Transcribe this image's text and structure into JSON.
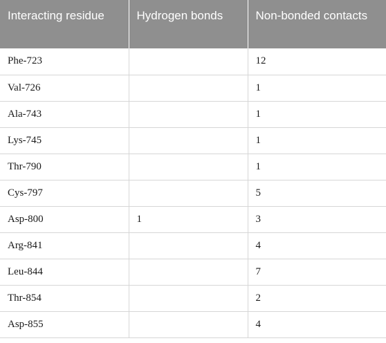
{
  "table": {
    "headers": [
      "Interacting residue",
      "Hydrogen bonds",
      "Non-bonded contacts"
    ],
    "rows": [
      [
        "Phe-723",
        "",
        "12"
      ],
      [
        "Val-726",
        "",
        "1"
      ],
      [
        "Ala-743",
        "",
        "1"
      ],
      [
        "Lys-745",
        "",
        "1"
      ],
      [
        "Thr-790",
        "",
        "1"
      ],
      [
        "Cys-797",
        "",
        "5"
      ],
      [
        "Asp-800",
        "1",
        "3"
      ],
      [
        "Arg-841",
        "",
        "4"
      ],
      [
        "Leu-844",
        "",
        "7"
      ],
      [
        "Thr-854",
        "",
        "2"
      ],
      [
        "Asp-855",
        "",
        "4"
      ]
    ]
  },
  "colors": {
    "header_bg": "#8f8f8f",
    "header_text": "#ffffff",
    "grid_line": "#d6d6d6"
  }
}
